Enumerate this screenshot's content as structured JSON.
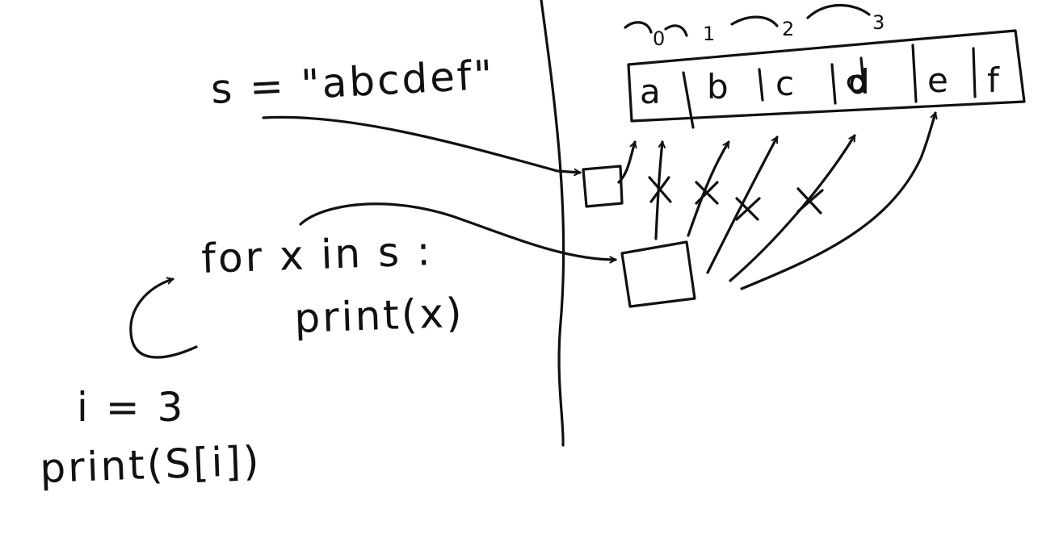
{
  "code": {
    "assign": "s = \"abcdef\"",
    "loop_header": "for x in s :",
    "loop_body": "print(x)",
    "index_assign": "i = 3",
    "index_print": "print(S[i])"
  },
  "string_cells": [
    "a",
    "b",
    "c",
    "d",
    "e",
    "f"
  ],
  "index_labels": [
    "0",
    "1",
    "2",
    "3"
  ],
  "colors": {
    "ink": "#111111",
    "background": "#ffffff"
  }
}
